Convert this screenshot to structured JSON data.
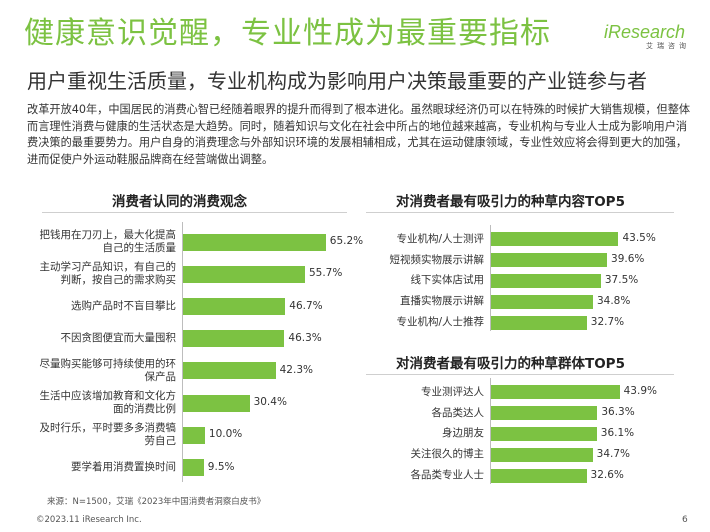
{
  "header": {
    "title": "健康意识觉醒，专业性成为最重要指标",
    "subtitle": "用户重视生活质量，专业机构成为影响用户决策最重要的产业链参与者"
  },
  "logo": {
    "main": "iResearch",
    "sub": "艾瑞咨询"
  },
  "paragraph": "改革开放40年，中国居民的消费心智已经随着眼界的提升而得到了根本进化。虽然眼球经济仍可以在特殊的时候扩大销售规模，但整体而言理性消费与健康的生活状态是大趋势。同时，随着知识与文化在社会中所占的地位越来越高，专业机构与专业人士成为影响用户消费决策的最重要势力。用户自身的消费理念与外部知识环境的发展相辅相成，尤其在运动健康领域，专业性效应将会得到更大的加强，进而促使户外运动鞋服品牌商在经营端做出调整。",
  "colors": {
    "accent": "#7cc242",
    "text": "#333333"
  },
  "chart_data": [
    {
      "type": "bar",
      "orientation": "horizontal",
      "title": "消费者认同的消费观念",
      "unit": "%",
      "categories": [
        "把钱用在刀刃上，最大化提高自己的生活质量",
        "主动学习产品知识，有自己的判断，按自己的需求购买",
        "选购产品时不盲目攀比",
        "不因贪图便宜而大量囤积",
        "尽量购买能够可持续使用的环保产品",
        "生活中应该增加教育和文化方面的消费比例",
        "及时行乐，平时要多多消费犒劳自己",
        "要学着用消费置换时间"
      ],
      "values": [
        65.2,
        55.7,
        46.7,
        46.3,
        42.3,
        30.4,
        10.0,
        9.5
      ],
      "value_labels": [
        "65.2%",
        "55.7%",
        "46.7%",
        "46.3%",
        "42.3%",
        "30.4%",
        "10.0%",
        "9.5%"
      ]
    },
    {
      "type": "bar",
      "orientation": "horizontal",
      "title": "对消费者最有吸引力的种草内容TOP5",
      "unit": "%",
      "categories": [
        "专业机构/人士测评",
        "短视频实物展示讲解",
        "线下实体店试用",
        "直播实物展示讲解",
        "专业机构/人士推荐"
      ],
      "values": [
        43.5,
        39.6,
        37.5,
        34.8,
        32.7
      ],
      "value_labels": [
        "43.5%",
        "39.6%",
        "37.5%",
        "34.8%",
        "32.7%"
      ]
    },
    {
      "type": "bar",
      "orientation": "horizontal",
      "title": "对消费者最有吸引力的种草群体TOP5",
      "unit": "%",
      "categories": [
        "专业测评达人",
        "各品类达人",
        "身边朋友",
        "关注很久的博主",
        "各品类专业人士"
      ],
      "values": [
        43.9,
        36.3,
        36.1,
        34.7,
        32.6
      ],
      "value_labels": [
        "43.9%",
        "36.3%",
        "36.1%",
        "34.7%",
        "32.6%"
      ]
    }
  ],
  "footer": {
    "source": "来源：N=1500，艾瑞《2023年中国消费者洞察白皮书》",
    "copyright": "©2023.11 iResearch Inc.",
    "page": "6"
  }
}
